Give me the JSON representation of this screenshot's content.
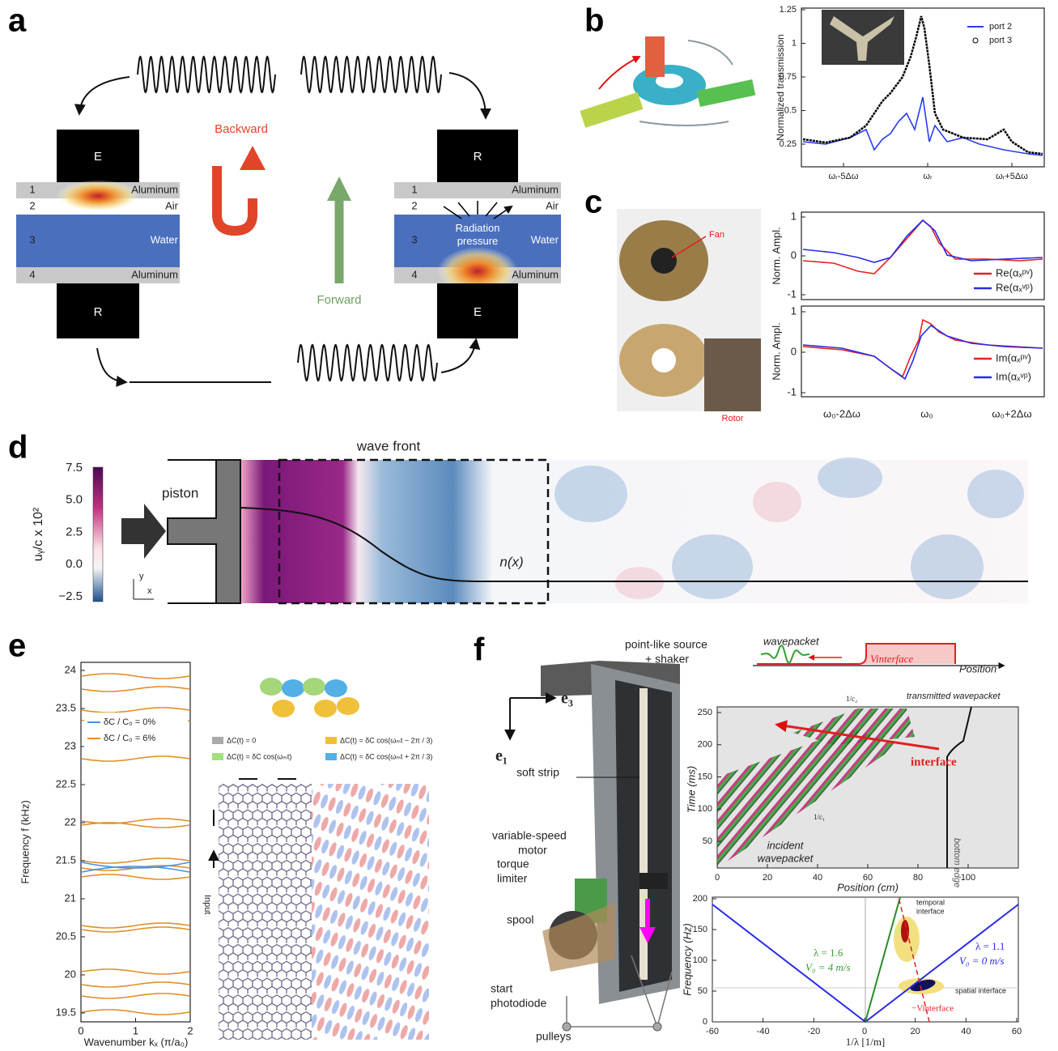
{
  "panel_a": {
    "label": "a",
    "left_stack": {
      "top_block": "E",
      "bottom_block": "R",
      "layers": [
        {
          "number": "1",
          "material": "Aluminum"
        },
        {
          "number": "2",
          "material": "Air"
        },
        {
          "number": "3",
          "material": "Water"
        },
        {
          "number": "4",
          "material": "Aluminum"
        }
      ]
    },
    "right_stack": {
      "top_block": "R",
      "bottom_block": "E",
      "annotation": "Radiation pressure",
      "layers": [
        {
          "number": "1",
          "material": "Aluminum"
        },
        {
          "number": "2",
          "material": "Air"
        },
        {
          "number": "3",
          "material": "Water"
        },
        {
          "number": "4",
          "material": "Aluminum"
        }
      ]
    },
    "backward": "Backward",
    "forward": "Forward"
  },
  "panel_b": {
    "label": "b",
    "y_label": "Normalized transmission",
    "yticks": [
      "1.25",
      "1",
      "0.75",
      "0.5",
      "0.25"
    ],
    "xticks": [
      "ωᵣ-5Δω",
      "ωᵣ",
      "ωᵣ+5Δω"
    ],
    "legend": [
      "port 2",
      "port 3"
    ]
  },
  "panel_c": {
    "label": "c",
    "photo_labels": [
      "Fan",
      "Rotor"
    ],
    "top_plot": {
      "y_label": "Norm. Ampl.",
      "yticks": [
        "1",
        "0",
        "-1"
      ],
      "legend": [
        "Re(αₓᵖᵛ)",
        "Re(αₓᵛᵖ)"
      ]
    },
    "bottom_plot": {
      "y_label": "Norm. Ampl.",
      "yticks": [
        "1",
        "0",
        "-1"
      ],
      "legend": [
        "Im(αₓᵖᵛ)",
        "Im(αₓᵛᵖ)"
      ]
    },
    "xticks": [
      "ω₀-2Δω",
      "ω₀",
      "ω₀+2Δω"
    ]
  },
  "panel_d": {
    "label": "d",
    "colorbar_label": "uᵧ/c x 10²",
    "colorbar_ticks": [
      "7.5",
      "5.0",
      "2.5",
      "0.0",
      "−2.5"
    ],
    "piston": "piston",
    "wave_front": "wave front",
    "profile": "n(x)",
    "axes": [
      "y",
      "x"
    ]
  },
  "panel_e": {
    "label": "e",
    "y_label": "Frequency f (kHz)",
    "x_label": "Wavenumber kₓ (π/a₀)",
    "yticks": [
      "24",
      "23.5",
      "23",
      "22.5",
      "22",
      "21.5",
      "21",
      "20.5",
      "20",
      "19.5"
    ],
    "xticks": [
      "0",
      "1",
      "2"
    ],
    "legend": [
      "δC / C₀ = 0%",
      "δC / C₀ = 6%"
    ],
    "modulation_legend": [
      "ΔC(t) = 0",
      "ΔC(t) = δC cos(ωₘt − 2π / 3)",
      "ΔC(t) = δC cos(ωₘt)",
      "ΔC(t) = δC cos(ωₘt + 2π / 3)"
    ],
    "input": "Input"
  },
  "panel_f": {
    "label": "f",
    "apparatus": {
      "source": [
        "point-like source",
        "+ shaker"
      ],
      "axis_3": "e₃",
      "axis_1": "e₁",
      "strip": "soft strip",
      "motor": [
        "variable-speed",
        "motor"
      ],
      "limiter": [
        "torque",
        "limiter"
      ],
      "spool": "spool",
      "photodiode": [
        "start",
        "photodiode"
      ],
      "pulleys": "pulleys"
    },
    "schematic": {
      "wavepacket": "wavepacket",
      "interface": "Vinterface",
      "position": "Position"
    },
    "upper_plot": {
      "y_label": "Time (ms)",
      "x_label": "Position (cm)",
      "yticks": [
        "50",
        "100",
        "150",
        "200",
        "250"
      ],
      "xticks": [
        "0",
        "20",
        "40",
        "60",
        "80",
        "100"
      ],
      "annotations": {
        "transmitted": "transmitted wavepacket",
        "slope_2": "1/c₂",
        "interface": "interface",
        "incident": [
          "incident",
          "wavepacket"
        ],
        "slope_1": "1/c₁",
        "edge": "bottom edge"
      }
    },
    "lower_plot": {
      "y_label": "Frequency (Hz)",
      "x_label": "1/λ [1/m]",
      "yticks": [
        "0",
        "50",
        "100",
        "150",
        "200"
      ],
      "xticks": [
        "-60",
        "-40",
        "-20",
        "0",
        "20",
        "40",
        "60"
      ],
      "annotations": {
        "left_lambda": "λ = 1.6",
        "left_speed": "V₀ = 4 m/s",
        "right_lambda": "λ = 1.1",
        "right_speed": "V₀ = 0 m/s",
        "temporal": [
          "temporal",
          "interface"
        ],
        "spatial": "spatial interface",
        "interface_speed": "−Vinterface"
      }
    }
  }
}
